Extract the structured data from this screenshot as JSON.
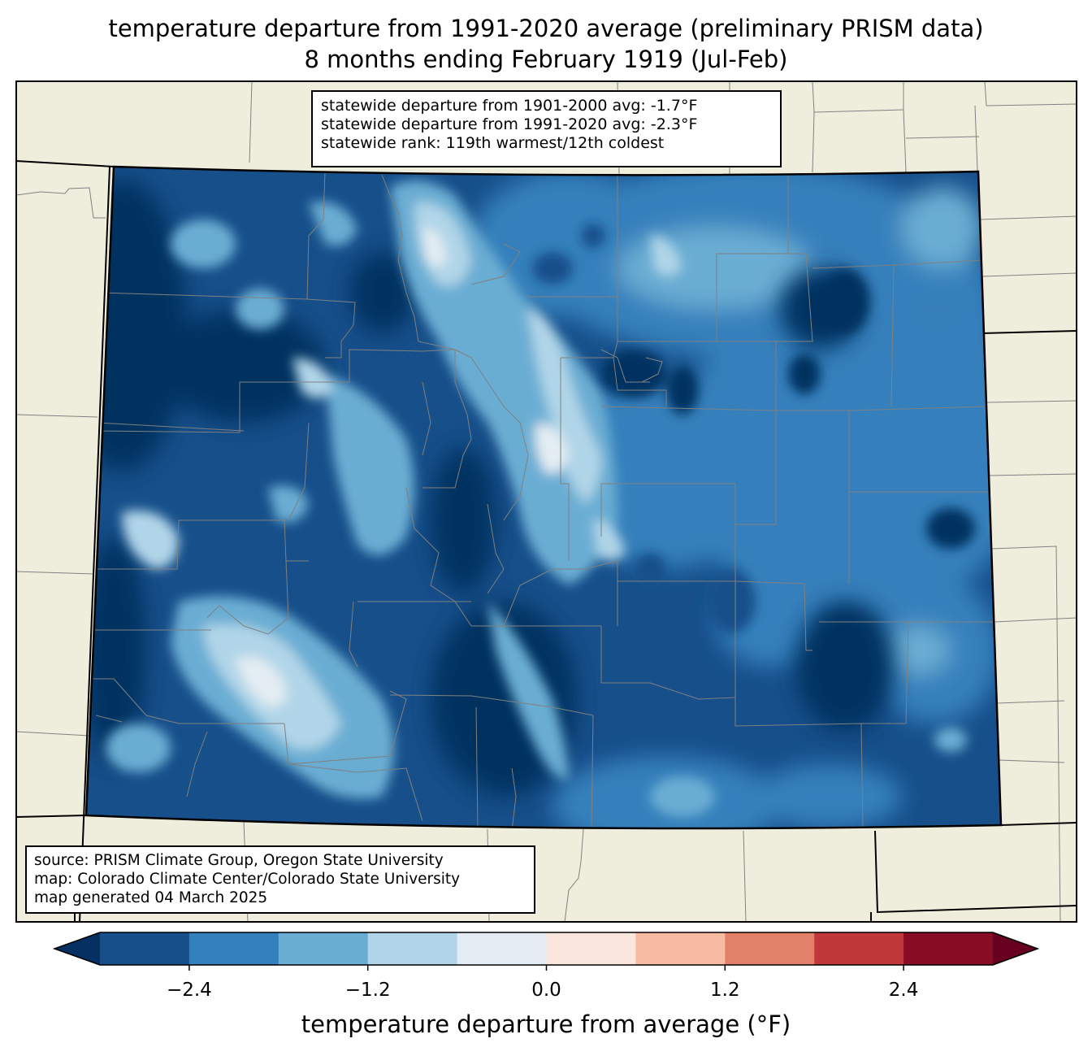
{
  "title": {
    "line1": "temperature departure from 1991-2020 average (preliminary PRISM data)",
    "line2": "8 months ending February 1919 (Jul-Feb)"
  },
  "stats": {
    "line1": "statewide departure from 1901-2000 avg: -1.7°F",
    "line2": "statewide departure from 1991-2020 avg: -2.3°F",
    "line3": "statewide rank: 119th warmest/12th coldest"
  },
  "source": {
    "line1": "source: PRISM Climate Group, Oregon State University",
    "line2": "map: Colorado Climate Center/Colorado State University",
    "line3": "map generated 04 March 2025"
  },
  "colorbar": {
    "label": "temperature departure from average (°F)",
    "ticks": [
      "−2.4",
      "−1.2",
      "0.0",
      "1.2",
      "2.4"
    ],
    "levels": [
      -3.0,
      -2.4,
      -1.8,
      -1.2,
      -0.6,
      0.0,
      0.6,
      1.2,
      1.8,
      2.4,
      3.0
    ],
    "colors": [
      "#164f8a",
      "#3480bc",
      "#6aadd3",
      "#b1d5e8",
      "#e4edf3",
      "#fae6dd",
      "#f8bba1",
      "#e28169",
      "#c1383a",
      "#870c24"
    ],
    "under_color": "#053061",
    "over_color": "#67001f"
  },
  "colors": {
    "land": "#efeedc",
    "state_border": "#000000",
    "county_border": "#808080"
  }
}
